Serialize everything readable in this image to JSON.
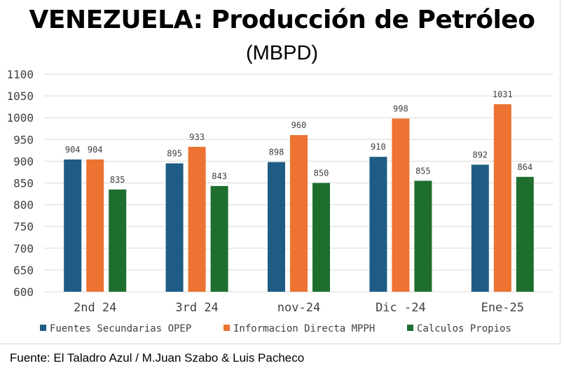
{
  "chart_data": {
    "type": "bar",
    "title": "VENEZUELA: Producción de Petróleo",
    "subtitle": "(MBPD)",
    "categories": [
      "2nd 24",
      "3rd 24",
      "nov-24",
      "Dic -24",
      "Ene-25"
    ],
    "series": [
      {
        "name": "Fuentes Secundarias OPEP",
        "color": "#1f5c85",
        "values": [
          904,
          895,
          898,
          910,
          892
        ]
      },
      {
        "name": "Informacion Directa MPPH",
        "color": "#ec7331",
        "values": [
          904,
          933,
          960,
          998,
          1031
        ]
      },
      {
        "name": "Calculos Propios",
        "color": "#1e6e2e",
        "values": [
          835,
          843,
          850,
          855,
          864
        ]
      }
    ],
    "ylim": [
      600,
      1100
    ],
    "yticks": [
      600,
      650,
      700,
      750,
      800,
      850,
      900,
      950,
      1000,
      1050,
      1100
    ],
    "grid": true,
    "legend_position": "bottom"
  },
  "source": "Fuente: El Taladro Azul / M.Juan Szabo & Luis Pacheco"
}
